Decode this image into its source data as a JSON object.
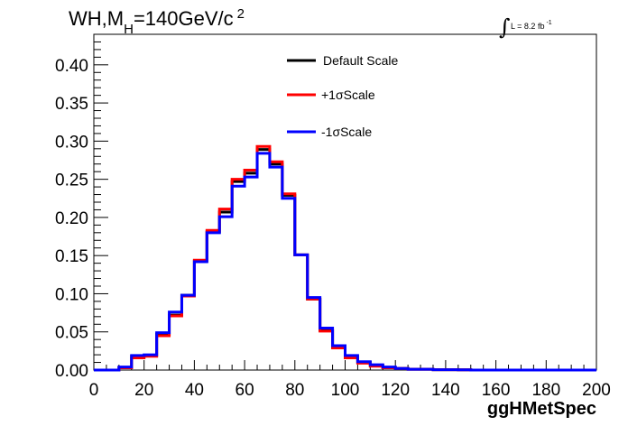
{
  "chart_data": {
    "type": "line",
    "style": "step-histogram",
    "title": "WH,M",
    "title_sub": "H",
    "title_tail": "=140GeV/c",
    "title_sup": "2",
    "lumi_integral": "∫",
    "lumi_text": "L = 8.2 fb",
    "lumi_sup": "-1",
    "xlabel": "ggHMetSpec",
    "ylabel": "",
    "xlim": [
      0,
      200
    ],
    "ylim": [
      0,
      0.44
    ],
    "grid": false,
    "legend_position": "top-center",
    "x_ticks": [
      "0",
      "20",
      "40",
      "60",
      "80",
      "100",
      "120",
      "140",
      "160",
      "180",
      "200"
    ],
    "y_ticks": [
      "0.00",
      "0.05",
      "0.10",
      "0.15",
      "0.20",
      "0.25",
      "0.30",
      "0.35",
      "0.40"
    ],
    "bin_edges": [
      0,
      5,
      10,
      15,
      20,
      25,
      30,
      35,
      40,
      45,
      50,
      55,
      60,
      65,
      70,
      75,
      80,
      85,
      90,
      95,
      100,
      105,
      110,
      115,
      120,
      125,
      130,
      135,
      140,
      145,
      150,
      155,
      160,
      165,
      170,
      175,
      180,
      185,
      190,
      195,
      200
    ],
    "series": [
      {
        "name": "Default Scale",
        "color": "#000000",
        "values": [
          0,
          0,
          0.003,
          0.018,
          0.019,
          0.047,
          0.072,
          0.098,
          0.143,
          0.181,
          0.207,
          0.247,
          0.258,
          0.289,
          0.27,
          0.229,
          0.151,
          0.093,
          0.052,
          0.03,
          0.017,
          0.01,
          0.006,
          0.003,
          0.002,
          0.001,
          0.001,
          0.0005,
          0.0005,
          0.0003,
          0,
          0,
          0,
          0,
          0,
          0,
          0,
          0,
          0,
          0
        ]
      },
      {
        "name": "+1σScale",
        "color": "#ff0000",
        "values": [
          0,
          0,
          0.003,
          0.016,
          0.018,
          0.045,
          0.071,
          0.097,
          0.144,
          0.183,
          0.211,
          0.25,
          0.262,
          0.293,
          0.273,
          0.231,
          0.151,
          0.093,
          0.051,
          0.029,
          0.016,
          0.009,
          0.005,
          0.003,
          0.002,
          0.001,
          0.001,
          0.0005,
          0.0005,
          0.0003,
          0,
          0,
          0,
          0,
          0,
          0,
          0,
          0,
          0,
          0
        ]
      },
      {
        "name": "-1σScale",
        "color": "#0000ff",
        "values": [
          0,
          0,
          0.004,
          0.019,
          0.02,
          0.049,
          0.076,
          0.098,
          0.142,
          0.18,
          0.201,
          0.241,
          0.253,
          0.284,
          0.266,
          0.225,
          0.151,
          0.095,
          0.055,
          0.032,
          0.019,
          0.011,
          0.007,
          0.004,
          0.002,
          0.001,
          0.001,
          0.0005,
          0.0005,
          0.0003,
          0,
          0,
          0,
          0,
          0,
          0,
          0,
          0,
          0,
          0
        ]
      }
    ]
  }
}
